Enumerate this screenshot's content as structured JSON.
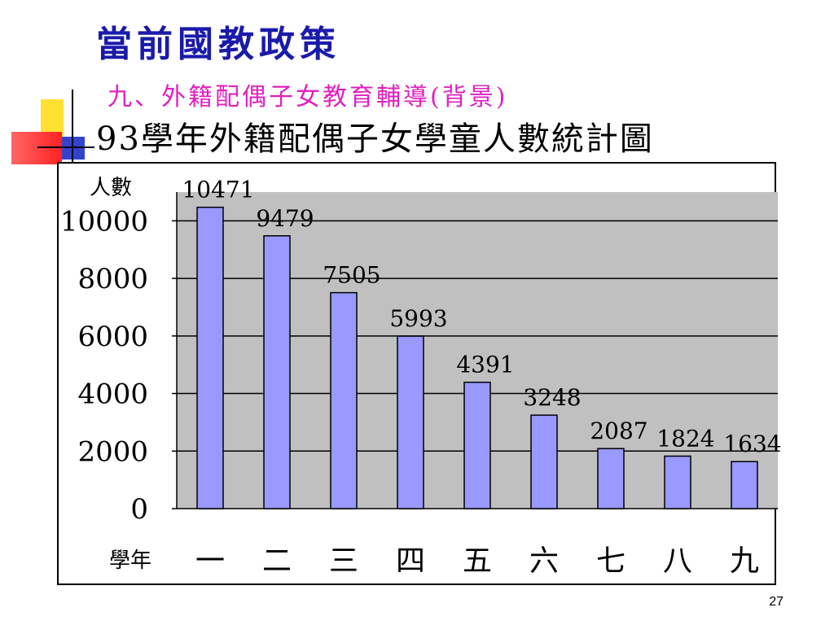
{
  "slide": {
    "title": "當前國教政策",
    "subtitle": "九、外籍配偶子女教育輔導(背景)",
    "heading": "93學年外籍配偶子女學童人數統計圖",
    "page_number": "27"
  },
  "colors": {
    "title": "#1a1aaa",
    "subtitle": "#e020c0",
    "bar_fill": "#9999ff",
    "plot_bg": "#c0c0c0"
  },
  "chart_data": {
    "type": "bar",
    "title": "93學年外籍配偶子女學童人數統計圖",
    "ylabel": "人數",
    "xlabel": "學年",
    "categories": [
      "一",
      "二",
      "三",
      "四",
      "五",
      "六",
      "七",
      "八",
      "九"
    ],
    "values": [
      10471,
      9479,
      7505,
      5993,
      4391,
      3248,
      2087,
      1824,
      1634
    ],
    "yticks": [
      0,
      2000,
      4000,
      6000,
      8000,
      10000
    ],
    "ylim": [
      0,
      11000
    ],
    "grid": true,
    "data_labels": true
  }
}
